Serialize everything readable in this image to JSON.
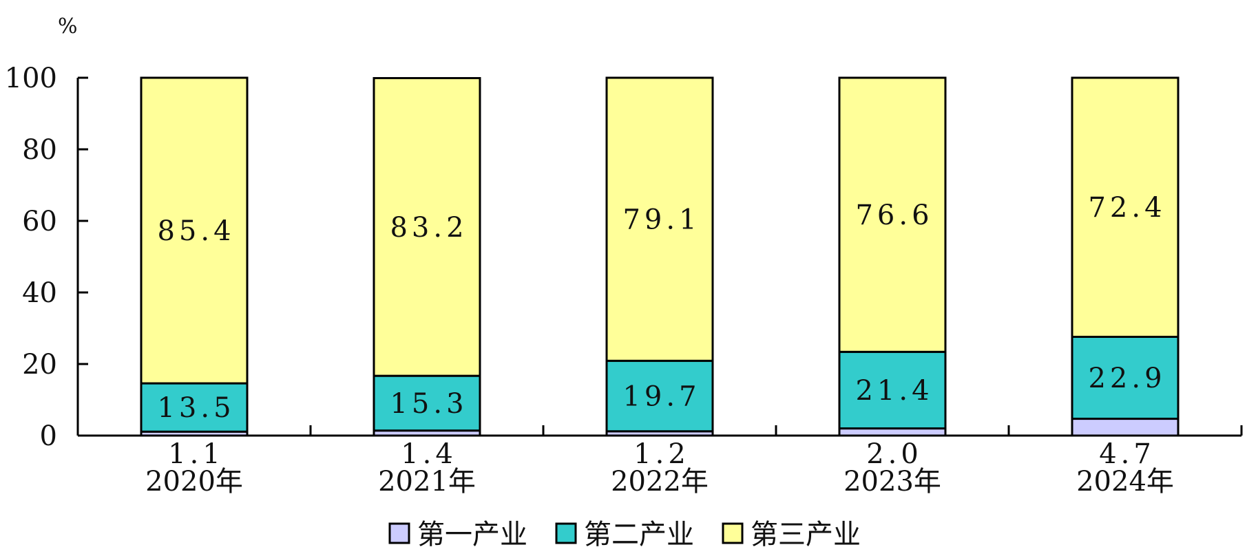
{
  "chart_data": {
    "type": "bar",
    "stacked": true,
    "unit_label": "%",
    "ylim": [
      0,
      100
    ],
    "yticks": [
      "0",
      "20",
      "40",
      "60",
      "80",
      "100"
    ],
    "categories": [
      "2020年",
      "2021年",
      "2022年",
      "2023年",
      "2024年"
    ],
    "series": [
      {
        "name": "第一产业",
        "color": "#ccccff",
        "values": [
          1.1,
          1.4,
          1.2,
          2.0,
          4.7
        ],
        "labels": [
          "1.1",
          "1.4",
          "1.2",
          "2.0",
          "4.7"
        ],
        "label_position": "below-axis"
      },
      {
        "name": "第二产业",
        "color": "#33cccc",
        "values": [
          13.5,
          15.3,
          19.7,
          21.4,
          22.9
        ],
        "labels": [
          "13.5",
          "15.3",
          "19.7",
          "21.4",
          "22.9"
        ],
        "label_position": "inside"
      },
      {
        "name": "第三产业",
        "color": "#ffff99",
        "values": [
          85.4,
          83.2,
          79.1,
          76.6,
          72.4
        ],
        "labels": [
          "85.4",
          "83.2",
          "79.1",
          "76.6",
          "72.4"
        ],
        "label_position": "inside"
      }
    ],
    "grid": false,
    "legend_position": "bottom"
  }
}
